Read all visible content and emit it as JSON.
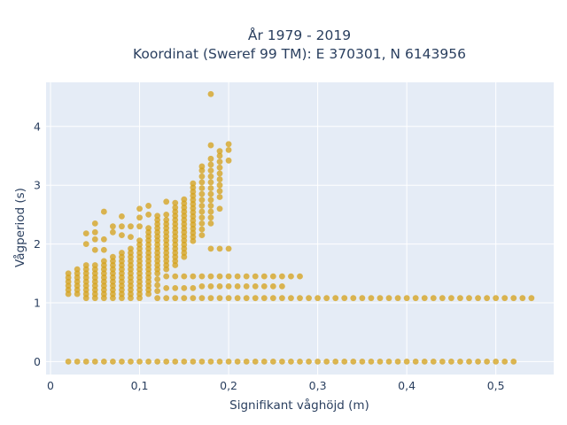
{
  "chart_data": {
    "type": "scatter",
    "title_line1": "År 1979 - 2019",
    "title_line2": "Koordinat (Sweref 99 TM): E 370301, N 6143956",
    "xlabel": "Signifikant våghöjd (m)",
    "ylabel": "Vågperiod (s)",
    "xlim": [
      -0.005,
      0.565
    ],
    "ylim": [
      -0.22,
      4.75
    ],
    "xticks": [
      0,
      0.1,
      0.2,
      0.3,
      0.4,
      0.5
    ],
    "xtick_labels": [
      "0",
      "0,1",
      "0,2",
      "0,3",
      "0,4",
      "0,5"
    ],
    "yticks": [
      0,
      1,
      2,
      3,
      4
    ],
    "ytick_labels": [
      "0",
      "1",
      "2",
      "3",
      "4"
    ],
    "grid": true,
    "legend": "none",
    "colors": {
      "marker": "#d4a017",
      "plot_bg": "#e5ecf6",
      "grid": "#ffffff",
      "text": "#2a3f5f"
    },
    "points": [
      [
        0.02,
        0.0
      ],
      [
        0.03,
        0.0
      ],
      [
        0.04,
        0.0
      ],
      [
        0.05,
        0.0
      ],
      [
        0.06,
        0.0
      ],
      [
        0.07,
        0.0
      ],
      [
        0.08,
        0.0
      ],
      [
        0.09,
        0.0
      ],
      [
        0.1,
        0.0
      ],
      [
        0.11,
        0.0
      ],
      [
        0.12,
        0.0
      ],
      [
        0.13,
        0.0
      ],
      [
        0.14,
        0.0
      ],
      [
        0.15,
        0.0
      ],
      [
        0.16,
        0.0
      ],
      [
        0.17,
        0.0
      ],
      [
        0.18,
        0.0
      ],
      [
        0.19,
        0.0
      ],
      [
        0.2,
        0.0
      ],
      [
        0.21,
        0.0
      ],
      [
        0.22,
        0.0
      ],
      [
        0.23,
        0.0
      ],
      [
        0.24,
        0.0
      ],
      [
        0.25,
        0.0
      ],
      [
        0.26,
        0.0
      ],
      [
        0.27,
        0.0
      ],
      [
        0.28,
        0.0
      ],
      [
        0.29,
        0.0
      ],
      [
        0.3,
        0.0
      ],
      [
        0.31,
        0.0
      ],
      [
        0.32,
        0.0
      ],
      [
        0.33,
        0.0
      ],
      [
        0.34,
        0.0
      ],
      [
        0.35,
        0.0
      ],
      [
        0.36,
        0.0
      ],
      [
        0.37,
        0.0
      ],
      [
        0.38,
        0.0
      ],
      [
        0.39,
        0.0
      ],
      [
        0.4,
        0.0
      ],
      [
        0.41,
        0.0
      ],
      [
        0.42,
        0.0
      ],
      [
        0.43,
        0.0
      ],
      [
        0.44,
        0.0
      ],
      [
        0.45,
        0.0
      ],
      [
        0.46,
        0.0
      ],
      [
        0.47,
        0.0
      ],
      [
        0.48,
        0.0
      ],
      [
        0.49,
        0.0
      ],
      [
        0.5,
        0.0
      ],
      [
        0.51,
        0.0
      ],
      [
        0.52,
        0.0
      ],
      [
        0.02,
        1.15
      ],
      [
        0.02,
        1.22
      ],
      [
        0.02,
        1.29
      ],
      [
        0.02,
        1.36
      ],
      [
        0.02,
        1.43
      ],
      [
        0.02,
        1.5
      ],
      [
        0.03,
        1.15
      ],
      [
        0.03,
        1.22
      ],
      [
        0.03,
        1.29
      ],
      [
        0.03,
        1.36
      ],
      [
        0.03,
        1.43
      ],
      [
        0.03,
        1.5
      ],
      [
        0.03,
        1.57
      ],
      [
        0.04,
        1.08
      ],
      [
        0.04,
        1.15
      ],
      [
        0.04,
        1.22
      ],
      [
        0.04,
        1.29
      ],
      [
        0.04,
        1.36
      ],
      [
        0.04,
        1.43
      ],
      [
        0.04,
        1.5
      ],
      [
        0.04,
        1.57
      ],
      [
        0.04,
        1.64
      ],
      [
        0.04,
        2.0
      ],
      [
        0.04,
        2.18
      ],
      [
        0.05,
        1.08
      ],
      [
        0.05,
        1.15
      ],
      [
        0.05,
        1.22
      ],
      [
        0.05,
        1.29
      ],
      [
        0.05,
        1.36
      ],
      [
        0.05,
        1.43
      ],
      [
        0.05,
        1.5
      ],
      [
        0.05,
        1.57
      ],
      [
        0.05,
        1.64
      ],
      [
        0.05,
        1.9
      ],
      [
        0.05,
        2.08
      ],
      [
        0.05,
        2.2
      ],
      [
        0.05,
        2.35
      ],
      [
        0.06,
        1.08
      ],
      [
        0.06,
        1.15
      ],
      [
        0.06,
        1.22
      ],
      [
        0.06,
        1.29
      ],
      [
        0.06,
        1.36
      ],
      [
        0.06,
        1.43
      ],
      [
        0.06,
        1.5
      ],
      [
        0.06,
        1.57
      ],
      [
        0.06,
        1.64
      ],
      [
        0.06,
        1.71
      ],
      [
        0.06,
        1.9
      ],
      [
        0.06,
        2.08
      ],
      [
        0.06,
        2.55
      ],
      [
        0.07,
        1.08
      ],
      [
        0.07,
        1.15
      ],
      [
        0.07,
        1.22
      ],
      [
        0.07,
        1.29
      ],
      [
        0.07,
        1.36
      ],
      [
        0.07,
        1.43
      ],
      [
        0.07,
        1.5
      ],
      [
        0.07,
        1.57
      ],
      [
        0.07,
        1.64
      ],
      [
        0.07,
        1.71
      ],
      [
        0.07,
        1.78
      ],
      [
        0.07,
        2.2
      ],
      [
        0.07,
        2.3
      ],
      [
        0.08,
        1.08
      ],
      [
        0.08,
        1.15
      ],
      [
        0.08,
        1.22
      ],
      [
        0.08,
        1.29
      ],
      [
        0.08,
        1.36
      ],
      [
        0.08,
        1.43
      ],
      [
        0.08,
        1.5
      ],
      [
        0.08,
        1.57
      ],
      [
        0.08,
        1.64
      ],
      [
        0.08,
        1.71
      ],
      [
        0.08,
        1.78
      ],
      [
        0.08,
        1.85
      ],
      [
        0.08,
        2.15
      ],
      [
        0.08,
        2.3
      ],
      [
        0.08,
        2.47
      ],
      [
        0.09,
        1.08
      ],
      [
        0.09,
        1.15
      ],
      [
        0.09,
        1.22
      ],
      [
        0.09,
        1.29
      ],
      [
        0.09,
        1.36
      ],
      [
        0.09,
        1.43
      ],
      [
        0.09,
        1.5
      ],
      [
        0.09,
        1.57
      ],
      [
        0.09,
        1.64
      ],
      [
        0.09,
        1.71
      ],
      [
        0.09,
        1.78
      ],
      [
        0.09,
        1.85
      ],
      [
        0.09,
        1.92
      ],
      [
        0.09,
        2.12
      ],
      [
        0.09,
        2.3
      ],
      [
        0.1,
        1.08
      ],
      [
        0.1,
        1.15
      ],
      [
        0.1,
        1.22
      ],
      [
        0.1,
        1.29
      ],
      [
        0.1,
        1.36
      ],
      [
        0.1,
        1.43
      ],
      [
        0.1,
        1.5
      ],
      [
        0.1,
        1.57
      ],
      [
        0.1,
        1.64
      ],
      [
        0.1,
        1.71
      ],
      [
        0.1,
        1.78
      ],
      [
        0.1,
        1.85
      ],
      [
        0.1,
        1.92
      ],
      [
        0.1,
        1.99
      ],
      [
        0.1,
        2.06
      ],
      [
        0.1,
        2.3
      ],
      [
        0.1,
        2.45
      ],
      [
        0.1,
        2.6
      ],
      [
        0.11,
        1.15
      ],
      [
        0.11,
        1.22
      ],
      [
        0.11,
        1.29
      ],
      [
        0.11,
        1.36
      ],
      [
        0.11,
        1.43
      ],
      [
        0.11,
        1.5
      ],
      [
        0.11,
        1.57
      ],
      [
        0.11,
        1.64
      ],
      [
        0.11,
        1.71
      ],
      [
        0.11,
        1.78
      ],
      [
        0.11,
        1.85
      ],
      [
        0.11,
        1.92
      ],
      [
        0.11,
        1.99
      ],
      [
        0.11,
        2.06
      ],
      [
        0.11,
        2.13
      ],
      [
        0.11,
        2.2
      ],
      [
        0.11,
        2.27
      ],
      [
        0.11,
        2.5
      ],
      [
        0.11,
        2.65
      ],
      [
        0.12,
        1.08
      ],
      [
        0.12,
        1.2
      ],
      [
        0.12,
        1.3
      ],
      [
        0.12,
        1.4
      ],
      [
        0.12,
        1.5
      ],
      [
        0.12,
        1.57
      ],
      [
        0.12,
        1.64
      ],
      [
        0.12,
        1.71
      ],
      [
        0.12,
        1.78
      ],
      [
        0.12,
        1.85
      ],
      [
        0.12,
        1.92
      ],
      [
        0.12,
        1.99
      ],
      [
        0.12,
        2.06
      ],
      [
        0.12,
        2.13
      ],
      [
        0.12,
        2.2
      ],
      [
        0.12,
        2.27
      ],
      [
        0.12,
        2.34
      ],
      [
        0.12,
        2.41
      ],
      [
        0.12,
        2.48
      ],
      [
        0.13,
        1.08
      ],
      [
        0.13,
        1.25
      ],
      [
        0.13,
        1.45
      ],
      [
        0.13,
        1.57
      ],
      [
        0.13,
        1.64
      ],
      [
        0.13,
        1.71
      ],
      [
        0.13,
        1.78
      ],
      [
        0.13,
        1.85
      ],
      [
        0.13,
        1.92
      ],
      [
        0.13,
        1.99
      ],
      [
        0.13,
        2.06
      ],
      [
        0.13,
        2.13
      ],
      [
        0.13,
        2.2
      ],
      [
        0.13,
        2.27
      ],
      [
        0.13,
        2.34
      ],
      [
        0.13,
        2.41
      ],
      [
        0.13,
        2.5
      ],
      [
        0.13,
        2.72
      ],
      [
        0.14,
        1.08
      ],
      [
        0.14,
        1.25
      ],
      [
        0.14,
        1.45
      ],
      [
        0.14,
        1.64
      ],
      [
        0.14,
        1.71
      ],
      [
        0.14,
        1.78
      ],
      [
        0.14,
        1.85
      ],
      [
        0.14,
        1.92
      ],
      [
        0.14,
        1.99
      ],
      [
        0.14,
        2.06
      ],
      [
        0.14,
        2.13
      ],
      [
        0.14,
        2.2
      ],
      [
        0.14,
        2.27
      ],
      [
        0.14,
        2.34
      ],
      [
        0.14,
        2.41
      ],
      [
        0.14,
        2.48
      ],
      [
        0.14,
        2.55
      ],
      [
        0.14,
        2.62
      ],
      [
        0.14,
        2.7
      ],
      [
        0.15,
        1.08
      ],
      [
        0.15,
        1.25
      ],
      [
        0.15,
        1.45
      ],
      [
        0.15,
        1.78
      ],
      [
        0.15,
        1.85
      ],
      [
        0.15,
        1.92
      ],
      [
        0.15,
        1.99
      ],
      [
        0.15,
        2.06
      ],
      [
        0.15,
        2.13
      ],
      [
        0.15,
        2.2
      ],
      [
        0.15,
        2.27
      ],
      [
        0.15,
        2.34
      ],
      [
        0.15,
        2.41
      ],
      [
        0.15,
        2.48
      ],
      [
        0.15,
        2.55
      ],
      [
        0.15,
        2.62
      ],
      [
        0.15,
        2.69
      ],
      [
        0.15,
        2.76
      ],
      [
        0.16,
        1.08
      ],
      [
        0.16,
        1.25
      ],
      [
        0.16,
        1.45
      ],
      [
        0.16,
        2.05
      ],
      [
        0.16,
        2.12
      ],
      [
        0.16,
        2.19
      ],
      [
        0.16,
        2.26
      ],
      [
        0.16,
        2.33
      ],
      [
        0.16,
        2.4
      ],
      [
        0.16,
        2.47
      ],
      [
        0.16,
        2.54
      ],
      [
        0.16,
        2.61
      ],
      [
        0.16,
        2.68
      ],
      [
        0.16,
        2.75
      ],
      [
        0.16,
        2.82
      ],
      [
        0.16,
        2.89
      ],
      [
        0.16,
        2.96
      ],
      [
        0.16,
        3.03
      ],
      [
        0.17,
        1.08
      ],
      [
        0.17,
        1.28
      ],
      [
        0.17,
        1.45
      ],
      [
        0.17,
        2.15
      ],
      [
        0.17,
        2.25
      ],
      [
        0.17,
        2.35
      ],
      [
        0.17,
        2.45
      ],
      [
        0.17,
        2.55
      ],
      [
        0.17,
        2.65
      ],
      [
        0.17,
        2.75
      ],
      [
        0.17,
        2.85
      ],
      [
        0.17,
        2.95
      ],
      [
        0.17,
        3.05
      ],
      [
        0.17,
        3.15
      ],
      [
        0.17,
        3.25
      ],
      [
        0.17,
        3.32
      ],
      [
        0.18,
        1.08
      ],
      [
        0.18,
        1.28
      ],
      [
        0.18,
        1.45
      ],
      [
        0.18,
        1.92
      ],
      [
        0.18,
        2.35
      ],
      [
        0.18,
        2.45
      ],
      [
        0.18,
        2.55
      ],
      [
        0.18,
        2.65
      ],
      [
        0.18,
        2.75
      ],
      [
        0.18,
        2.85
      ],
      [
        0.18,
        2.95
      ],
      [
        0.18,
        3.05
      ],
      [
        0.18,
        3.15
      ],
      [
        0.18,
        3.25
      ],
      [
        0.18,
        3.35
      ],
      [
        0.18,
        3.45
      ],
      [
        0.18,
        3.68
      ],
      [
        0.18,
        4.55
      ],
      [
        0.19,
        1.08
      ],
      [
        0.19,
        1.28
      ],
      [
        0.19,
        1.45
      ],
      [
        0.19,
        1.92
      ],
      [
        0.19,
        2.6
      ],
      [
        0.19,
        2.8
      ],
      [
        0.19,
        2.9
      ],
      [
        0.19,
        3.0
      ],
      [
        0.19,
        3.1
      ],
      [
        0.19,
        3.2
      ],
      [
        0.19,
        3.3
      ],
      [
        0.19,
        3.4
      ],
      [
        0.19,
        3.5
      ],
      [
        0.19,
        3.58
      ],
      [
        0.2,
        1.08
      ],
      [
        0.2,
        1.28
      ],
      [
        0.2,
        1.45
      ],
      [
        0.2,
        1.92
      ],
      [
        0.2,
        3.42
      ],
      [
        0.2,
        3.6
      ],
      [
        0.2,
        3.7
      ],
      [
        0.21,
        1.08
      ],
      [
        0.21,
        1.28
      ],
      [
        0.21,
        1.45
      ],
      [
        0.22,
        1.08
      ],
      [
        0.22,
        1.28
      ],
      [
        0.22,
        1.45
      ],
      [
        0.23,
        1.08
      ],
      [
        0.23,
        1.28
      ],
      [
        0.23,
        1.45
      ],
      [
        0.24,
        1.08
      ],
      [
        0.24,
        1.28
      ],
      [
        0.24,
        1.45
      ],
      [
        0.25,
        1.08
      ],
      [
        0.25,
        1.28
      ],
      [
        0.25,
        1.45
      ],
      [
        0.26,
        1.08
      ],
      [
        0.26,
        1.28
      ],
      [
        0.26,
        1.45
      ],
      [
        0.27,
        1.08
      ],
      [
        0.27,
        1.45
      ],
      [
        0.28,
        1.08
      ],
      [
        0.28,
        1.45
      ],
      [
        0.29,
        1.08
      ],
      [
        0.3,
        1.08
      ],
      [
        0.31,
        1.08
      ],
      [
        0.32,
        1.08
      ],
      [
        0.33,
        1.08
      ],
      [
        0.34,
        1.08
      ],
      [
        0.35,
        1.08
      ],
      [
        0.36,
        1.08
      ],
      [
        0.37,
        1.08
      ],
      [
        0.38,
        1.08
      ],
      [
        0.39,
        1.08
      ],
      [
        0.4,
        1.08
      ],
      [
        0.41,
        1.08
      ],
      [
        0.42,
        1.08
      ],
      [
        0.43,
        1.08
      ],
      [
        0.44,
        1.08
      ],
      [
        0.45,
        1.08
      ],
      [
        0.46,
        1.08
      ],
      [
        0.47,
        1.08
      ],
      [
        0.48,
        1.08
      ],
      [
        0.49,
        1.08
      ],
      [
        0.5,
        1.08
      ],
      [
        0.51,
        1.08
      ],
      [
        0.52,
        1.08
      ],
      [
        0.53,
        1.08
      ],
      [
        0.54,
        1.08
      ]
    ]
  }
}
